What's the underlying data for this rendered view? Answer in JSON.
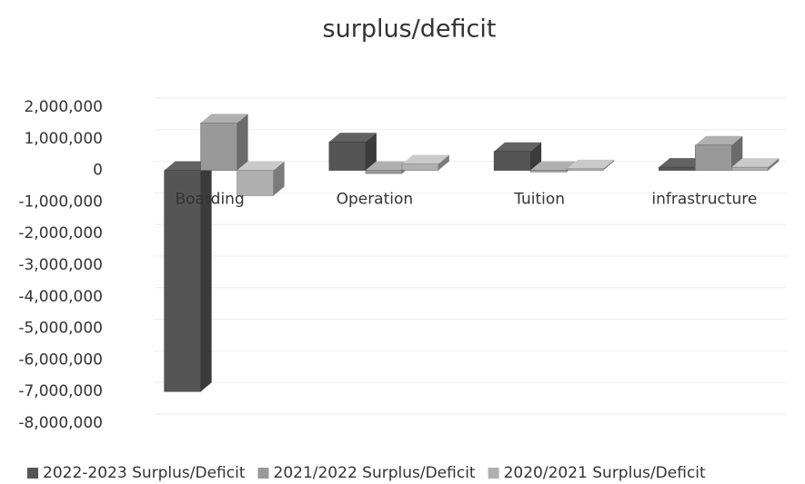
{
  "chart_data": {
    "type": "bar3d",
    "title": "surplus/deficit",
    "categories": [
      "Boarding",
      "Operation",
      "Tuition",
      "infrastructure"
    ],
    "series": [
      {
        "name": "2022-2023 Surplus/Deficit",
        "color": "#555555",
        "values": [
          -7000000,
          900000,
          600000,
          100000
        ]
      },
      {
        "name": "2021/2022 Surplus/Deficit",
        "color": "#999999",
        "values": [
          1500000,
          -100000,
          -50000,
          800000
        ]
      },
      {
        "name": "2020/2021 Surplus/Deficit",
        "color": "#b0b0b0",
        "values": [
          -800000,
          200000,
          50000,
          100000
        ]
      }
    ],
    "ylim": [
      -8000000,
      2000000
    ],
    "yticks": [
      {
        "value": -8000000,
        "label": "-8,000,000"
      },
      {
        "value": -7000000,
        "label": "-7,000,000"
      },
      {
        "value": -6000000,
        "label": "-6,000,000"
      },
      {
        "value": -5000000,
        "label": "-5,000,000"
      },
      {
        "value": -4000000,
        "label": "-4,000,000"
      },
      {
        "value": -3000000,
        "label": "-3,000,000"
      },
      {
        "value": -2000000,
        "label": "-2,000,000"
      },
      {
        "value": -1000000,
        "label": "-1,000,000"
      },
      0,
      {
        "value": 1000000,
        "label": "1,000,000"
      },
      {
        "value": 2000000,
        "label": "2,000,000"
      }
    ],
    "grid": true,
    "legend": "bottom"
  }
}
